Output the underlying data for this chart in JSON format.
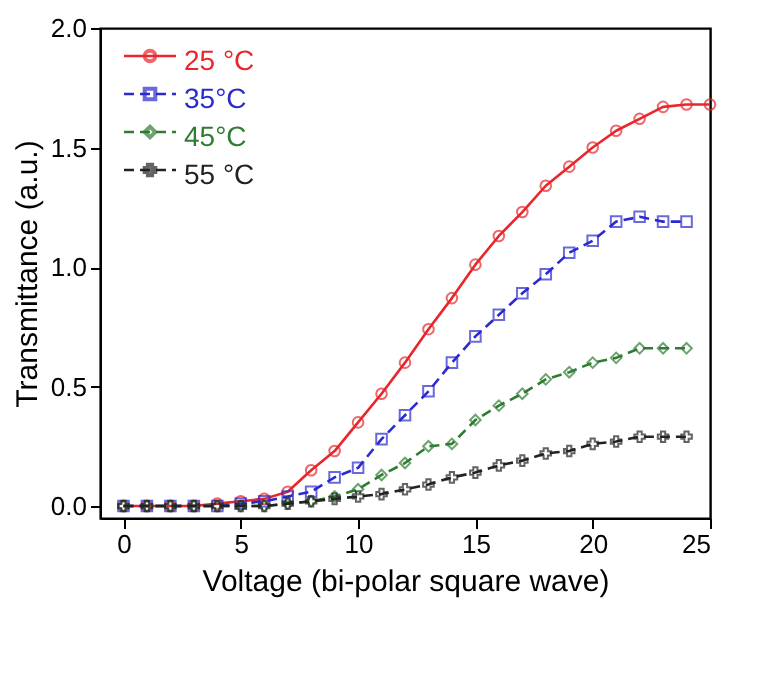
{
  "chart_data": {
    "type": "line",
    "xlabel": "Voltage (bi-polar square wave)",
    "ylabel": "Transmittance (a.u.)",
    "x": [
      0,
      1,
      2,
      3,
      4,
      5,
      6,
      7,
      8,
      9,
      10,
      11,
      12,
      13,
      14,
      15,
      16,
      17,
      18,
      19,
      20,
      21,
      22,
      23,
      24,
      25
    ],
    "xlim": [
      -1,
      25
    ],
    "xticks": [
      0,
      5,
      10,
      15,
      20,
      25
    ],
    "ylim": [
      -0.05,
      2.0
    ],
    "yticks": [
      {
        "value": 0,
        "label": "0.0"
      },
      {
        "value": 0.5,
        "label": "0.5"
      },
      {
        "value": 1,
        "label": "1.0"
      },
      {
        "value": 1.5,
        "label": "1.5"
      },
      {
        "value": 2,
        "label": "2.0"
      }
    ],
    "grid": false,
    "legend": "top left",
    "series": [
      {
        "name": "25 °C",
        "color": "#e8262b",
        "marker": "circle",
        "line_style": "solid",
        "values": [
          0,
          0,
          0,
          0,
          0.01,
          0.02,
          0.03,
          0.06,
          0.15,
          0.23,
          0.35,
          0.47,
          0.6,
          0.74,
          0.87,
          1.01,
          1.13,
          1.23,
          1.34,
          1.42,
          1.5,
          1.57,
          1.62,
          1.67,
          1.68,
          1.68
        ]
      },
      {
        "name": "35°C",
        "color": "#2a2ad0",
        "marker": "square",
        "line_style": "dashed",
        "values": [
          0,
          0,
          0,
          0,
          0,
          0.01,
          0.02,
          0.04,
          0.06,
          0.12,
          0.16,
          0.28,
          0.38,
          0.48,
          0.6,
          0.71,
          0.8,
          0.89,
          0.97,
          1.06,
          1.11,
          1.19,
          1.21,
          1.19,
          1.19,
          null
        ]
      },
      {
        "name": "45°C",
        "color": "#2e7d32",
        "marker": "diamond",
        "line_style": "dashed",
        "values": [
          0,
          0,
          0,
          0,
          0,
          0,
          0,
          0.01,
          0.02,
          0.04,
          0.07,
          0.13,
          0.18,
          0.25,
          0.26,
          0.36,
          0.42,
          0.47,
          0.53,
          0.56,
          0.6,
          0.62,
          0.66,
          0.66,
          0.66,
          null
        ]
      },
      {
        "name": "55 °C",
        "color": "#222222",
        "marker": "cross",
        "line_style": "dashed",
        "values": [
          0,
          0,
          0,
          0,
          0,
          0,
          0,
          0.01,
          0.02,
          0.03,
          0.04,
          0.05,
          0.07,
          0.09,
          0.12,
          0.14,
          0.17,
          0.19,
          0.22,
          0.23,
          0.26,
          0.27,
          0.29,
          0.29,
          0.29,
          null
        ]
      }
    ]
  }
}
